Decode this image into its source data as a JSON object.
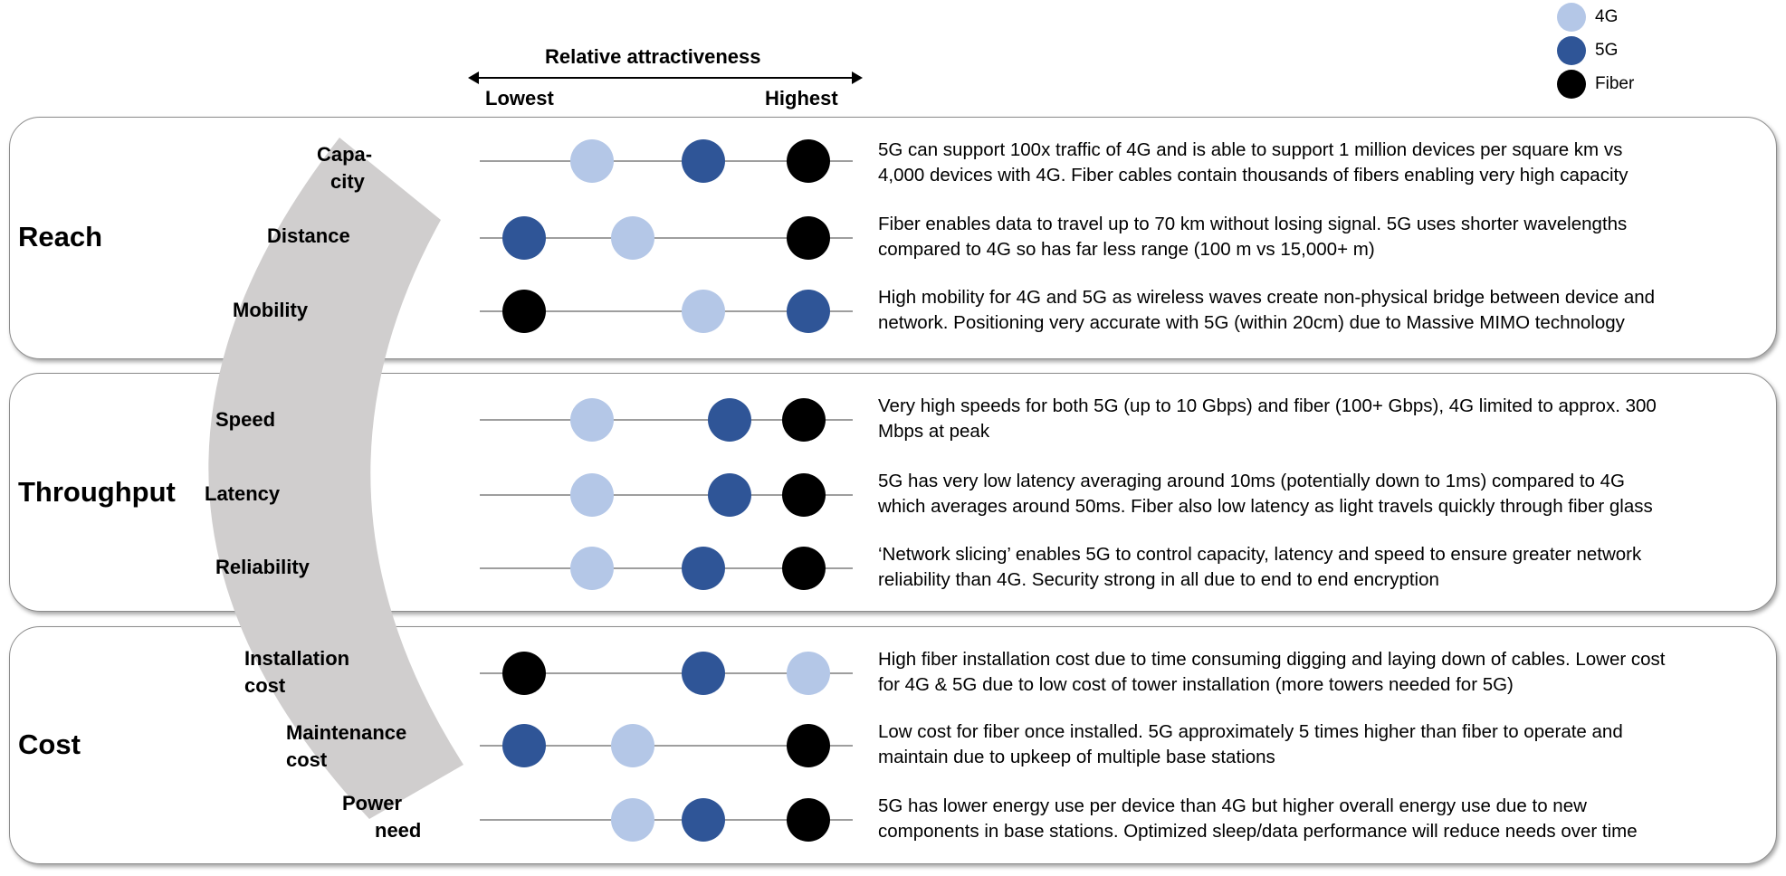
{
  "header": {
    "title": "Relative attractiveness",
    "lowest": "Lowest",
    "highest": "Highest"
  },
  "legend": [
    {
      "label": "4G",
      "color": "#b4c7e7"
    },
    {
      "label": "5G",
      "color": "#2f5597"
    },
    {
      "label": "Fiber",
      "color": "#000000"
    }
  ],
  "sections": [
    {
      "title": "Reach"
    },
    {
      "title": "Throughput"
    },
    {
      "title": "Cost"
    }
  ],
  "rows": [
    {
      "factor_line1": "Capa-",
      "factor_line2": "city",
      "ratings": {
        "4G": 0.3,
        "5G": 0.6,
        "Fiber": 0.88
      },
      "desc_line1": "5G can support 100x traffic of 4G and is able to support 1 million devices per square km vs",
      "desc_line2": "4,000 devices with 4G. Fiber cables contain thousands of fibers enabling very high capacity"
    },
    {
      "factor_line1": "Distance",
      "factor_line2": "",
      "ratings": {
        "4G": 0.41,
        "5G": 0.12,
        "Fiber": 0.88
      },
      "desc_line1": "Fiber enables data to travel up to 70 km without losing signal. 5G uses shorter wavelengths",
      "desc_line2": "compared to 4G so has far less range (100 m vs 15,000+ m)"
    },
    {
      "factor_line1": "Mobility",
      "factor_line2": "",
      "ratings": {
        "4G": 0.6,
        "5G": 0.88,
        "Fiber": 0.12
      },
      "desc_line1": "High mobility for 4G and 5G as wireless waves create non-physical bridge between device and",
      "desc_line2": "network. Positioning very accurate with 5G (within 20cm) due to Massive MIMO technology"
    },
    {
      "factor_line1": "Speed",
      "factor_line2": "",
      "ratings": {
        "4G": 0.3,
        "5G": 0.67,
        "Fiber": 0.87
      },
      "desc_line1": "Very high speeds for both 5G (up to 10 Gbps) and fiber (100+ Gbps), 4G limited to approx. 300",
      "desc_line2": "Mbps at peak"
    },
    {
      "factor_line1": "Latency",
      "factor_line2": "",
      "ratings": {
        "4G": 0.3,
        "5G": 0.67,
        "Fiber": 0.87
      },
      "desc_line1": "5G has very low latency averaging around 10ms (potentially down to 1ms) compared to 4G",
      "desc_line2": "which averages around 50ms. Fiber also low latency as light travels quickly through fiber glass"
    },
    {
      "factor_line1": "Reliability",
      "factor_line2": "",
      "ratings": {
        "4G": 0.3,
        "5G": 0.6,
        "Fiber": 0.87
      },
      "desc_line1": "‘Network slicing’ enables 5G to control capacity, latency and speed to ensure greater network",
      "desc_line2": "reliability than 4G. Security strong in all due to end to end encryption"
    },
    {
      "factor_line1": "Installation",
      "factor_line2": "cost",
      "ratings": {
        "4G": 0.88,
        "5G": 0.6,
        "Fiber": 0.12
      },
      "desc_line1": "High fiber installation cost due to time consuming digging and laying down of cables. Lower cost",
      "desc_line2": "for 4G & 5G due to low cost of tower installation (more towers needed for 5G)"
    },
    {
      "factor_line1": "Maintenance",
      "factor_line2": "cost",
      "ratings": {
        "4G": 0.41,
        "5G": 0.12,
        "Fiber": 0.88
      },
      "desc_line1": "Low cost for fiber once installed. 5G approximately 5 times higher than fiber to operate and",
      "desc_line2": "maintain due to upkeep of multiple base stations"
    },
    {
      "factor_line1": "Power",
      "factor_line2": "need",
      "ratings": {
        "4G": 0.41,
        "5G": 0.6,
        "Fiber": 0.88
      },
      "desc_line1": "5G has lower energy use per device than 4G but higher overall energy use due to new",
      "desc_line2": "components in base stations. Optimized sleep/data performance will reduce needs over time"
    }
  ]
}
